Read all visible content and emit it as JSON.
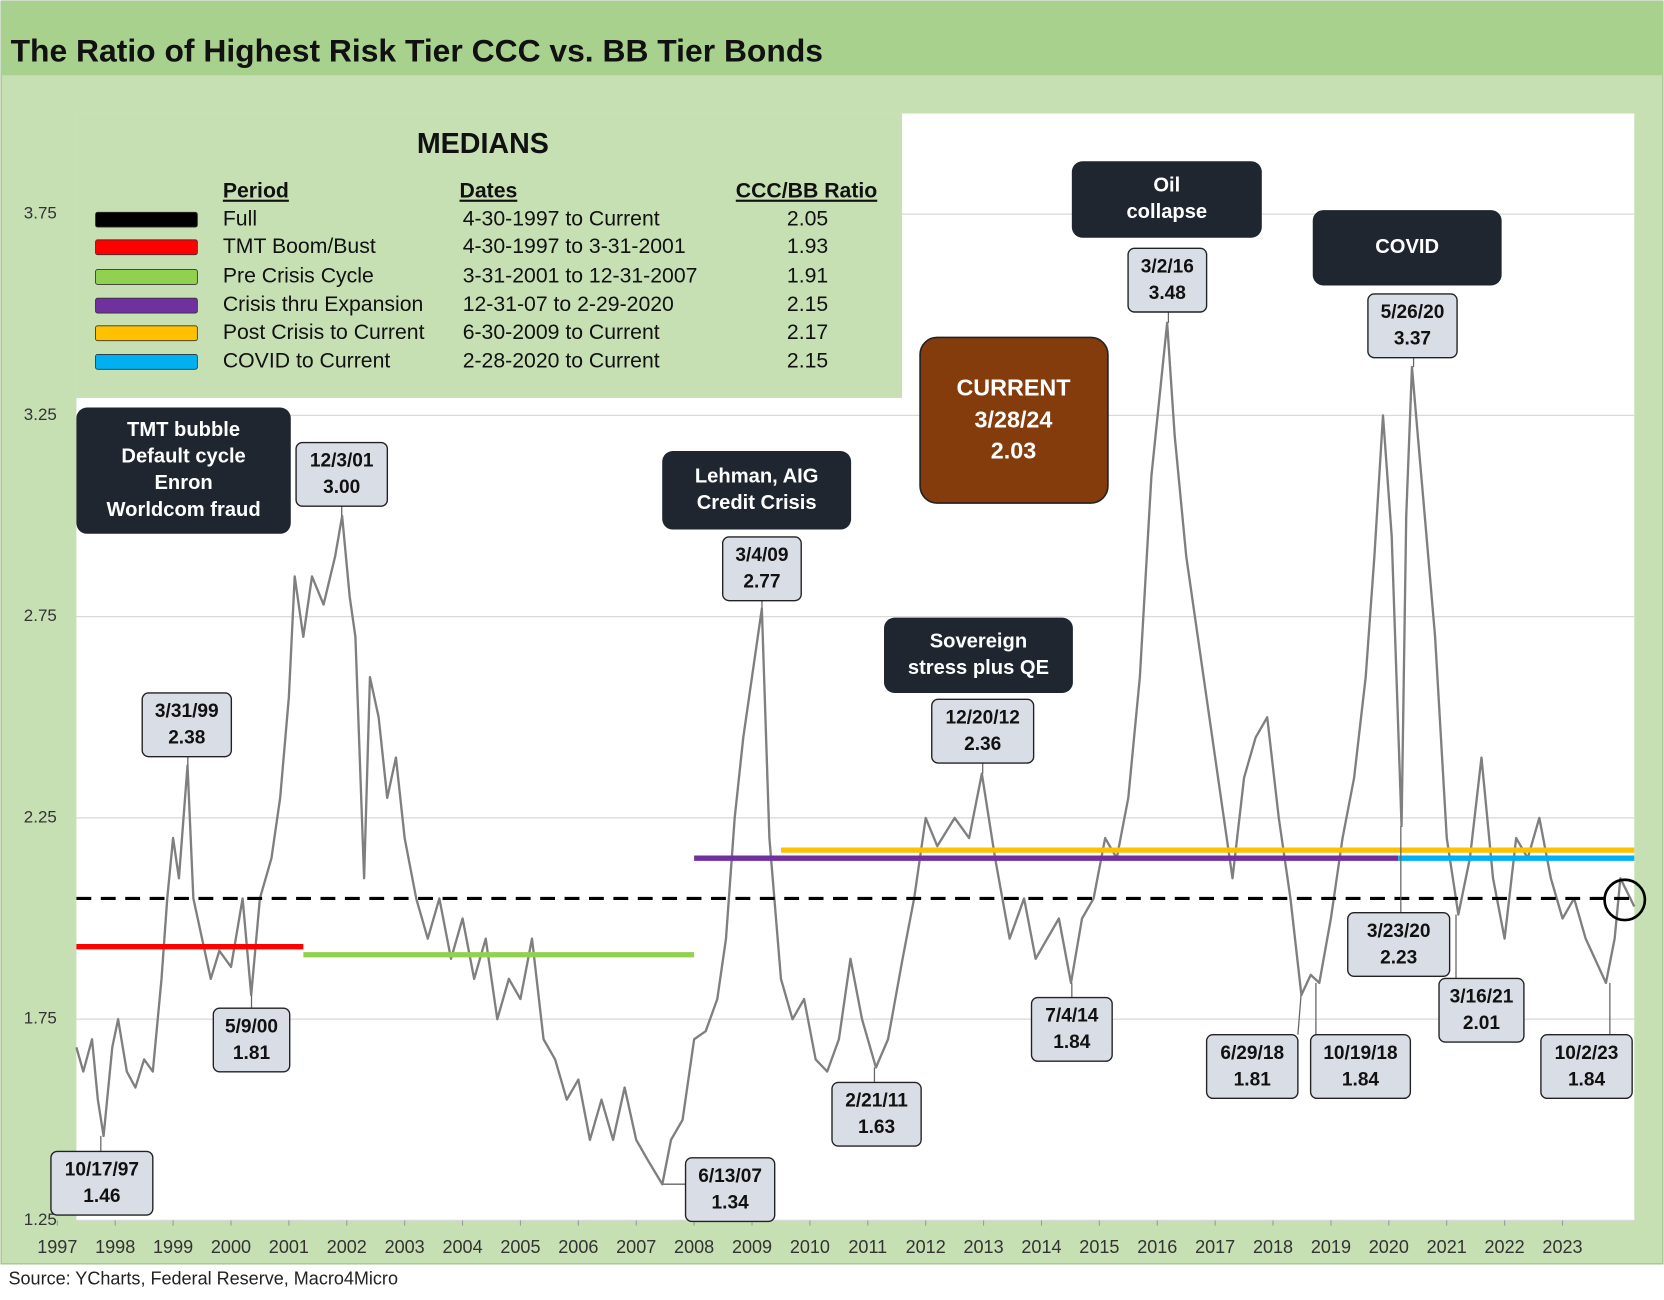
{
  "chart_data": {
    "type": "line",
    "title": "The Ratio of Highest Risk Tier CCC vs. BB Tier Bonds",
    "source": "Source: YCharts, Federal Reserve, Macro4Micro",
    "xlim": [
      1997.33,
      2024.24
    ],
    "xticks": [
      1997,
      1998,
      1999,
      2000,
      2001,
      2002,
      2003,
      2004,
      2005,
      2006,
      2007,
      2008,
      2009,
      2010,
      2011,
      2012,
      2013,
      2014,
      2015,
      2016,
      2017,
      2018,
      2019,
      2020,
      2021,
      2022,
      2023
    ],
    "ylim": [
      1.25,
      4.0
    ],
    "yticks": [
      1.25,
      1.75,
      2.25,
      2.75,
      3.25,
      3.75
    ],
    "grid": true,
    "series": [
      {
        "color": "#7f7f7f",
        "x": [
          1997.33,
          1997.45,
          1997.6,
          1997.7,
          1997.8,
          1997.95,
          1998.05,
          1998.2,
          1998.35,
          1998.5,
          1998.65,
          1998.8,
          1998.9,
          1999.0,
          1999.1,
          1999.25,
          1999.35,
          1999.5,
          1999.65,
          1999.8,
          2000.0,
          2000.2,
          2000.35,
          2000.5,
          2000.7,
          2000.85,
          2001.0,
          2001.1,
          2001.25,
          2001.4,
          2001.6,
          2001.8,
          2001.92,
          2002.05,
          2002.15,
          2002.3,
          2002.4,
          2002.55,
          2002.7,
          2002.85,
          2003.0,
          2003.2,
          2003.4,
          2003.6,
          2003.8,
          2004.0,
          2004.2,
          2004.4,
          2004.6,
          2004.8,
          2005.0,
          2005.2,
          2005.4,
          2005.6,
          2005.8,
          2006.0,
          2006.2,
          2006.4,
          2006.6,
          2006.8,
          2007.0,
          2007.2,
          2007.45,
          2007.6,
          2007.8,
          2008.0,
          2008.2,
          2008.4,
          2008.55,
          2008.7,
          2008.85,
          2009.0,
          2009.17,
          2009.3,
          2009.5,
          2009.7,
          2009.9,
          2010.1,
          2010.3,
          2010.5,
          2010.7,
          2010.9,
          2011.14,
          2011.35,
          2011.6,
          2011.8,
          2012.0,
          2012.2,
          2012.5,
          2012.75,
          2012.97,
          2013.2,
          2013.45,
          2013.7,
          2013.9,
          2014.1,
          2014.3,
          2014.51,
          2014.7,
          2014.9,
          2015.1,
          2015.3,
          2015.5,
          2015.7,
          2015.9,
          2016.17,
          2016.3,
          2016.5,
          2016.7,
          2016.9,
          2017.1,
          2017.3,
          2017.5,
          2017.7,
          2017.9,
          2018.1,
          2018.3,
          2018.49,
          2018.65,
          2018.8,
          2019.0,
          2019.2,
          2019.4,
          2019.6,
          2019.75,
          2019.9,
          2020.05,
          2020.22,
          2020.3,
          2020.4,
          2020.5,
          2020.65,
          2020.8,
          2021.0,
          2021.2,
          2021.4,
          2021.6,
          2021.8,
          2022.0,
          2022.2,
          2022.4,
          2022.6,
          2022.8,
          2023.0,
          2023.2,
          2023.4,
          2023.75,
          2023.9,
          2024.0,
          2024.24
        ],
        "values": [
          1.68,
          1.62,
          1.7,
          1.55,
          1.46,
          1.68,
          1.75,
          1.62,
          1.58,
          1.65,
          1.62,
          1.85,
          2.05,
          2.2,
          2.1,
          2.38,
          2.05,
          1.95,
          1.85,
          1.92,
          1.88,
          2.05,
          1.81,
          2.05,
          2.15,
          2.3,
          2.55,
          2.85,
          2.7,
          2.85,
          2.78,
          2.9,
          3.0,
          2.8,
          2.7,
          2.1,
          2.6,
          2.5,
          2.3,
          2.4,
          2.2,
          2.05,
          1.95,
          2.05,
          1.9,
          2.0,
          1.85,
          1.95,
          1.75,
          1.85,
          1.8,
          1.95,
          1.7,
          1.65,
          1.55,
          1.6,
          1.45,
          1.55,
          1.45,
          1.58,
          1.45,
          1.4,
          1.34,
          1.45,
          1.5,
          1.7,
          1.72,
          1.8,
          1.95,
          2.25,
          2.45,
          2.6,
          2.77,
          2.2,
          1.85,
          1.75,
          1.8,
          1.65,
          1.62,
          1.7,
          1.9,
          1.75,
          1.63,
          1.7,
          1.9,
          2.05,
          2.25,
          2.18,
          2.25,
          2.2,
          2.36,
          2.15,
          1.95,
          2.05,
          1.9,
          1.95,
          2.0,
          1.84,
          2.0,
          2.05,
          2.2,
          2.15,
          2.3,
          2.6,
          3.1,
          3.48,
          3.2,
          2.9,
          2.7,
          2.5,
          2.3,
          2.1,
          2.35,
          2.45,
          2.5,
          2.25,
          2.05,
          1.81,
          1.86,
          1.84,
          2.0,
          2.2,
          2.35,
          2.6,
          2.9,
          3.25,
          2.95,
          2.23,
          3.0,
          3.37,
          3.2,
          2.95,
          2.7,
          2.2,
          2.01,
          2.15,
          2.4,
          2.1,
          1.95,
          2.2,
          2.15,
          2.25,
          2.1,
          2.0,
          2.05,
          1.95,
          1.84,
          1.95,
          2.1,
          2.03
        ]
      }
    ],
    "medians": {
      "title": "MEDIANS",
      "columns": [
        "Period",
        "Dates",
        "CCC/BB Ratio"
      ],
      "rows": [
        {
          "period": "Full",
          "dates": "4-30-1997 to Current",
          "value": 2.05,
          "color": "#000000",
          "dashed": true,
          "x": [
            1997.33,
            2024.24
          ]
        },
        {
          "period": "TMT Boom/Bust",
          "dates": "4-30-1997 to 3-31-2001",
          "value": 1.93,
          "color": "#ff0000",
          "dashed": false,
          "x": [
            1997.33,
            2001.25
          ]
        },
        {
          "period": "Pre Crisis Cycle",
          "dates": "3-31-2001 to 12-31-2007",
          "value": 1.91,
          "color": "#92d050",
          "dashed": false,
          "x": [
            2001.25,
            2008.0
          ]
        },
        {
          "period": "Crisis thru Expansion",
          "dates": "12-31-07 to 2-29-2020",
          "value": 2.15,
          "color": "#7030a0",
          "dashed": false,
          "x": [
            2008.0,
            2020.16
          ]
        },
        {
          "period": "Post Crisis to Current",
          "dates": "6-30-2009 to Current",
          "value": 2.17,
          "color": "#ffc000",
          "dashed": false,
          "x": [
            2009.5,
            2024.24
          ]
        },
        {
          "period": "COVID to Current",
          "dates": "2-28-2020 to Current",
          "value": 2.15,
          "color": "#00b0f0",
          "dashed": false,
          "x": [
            2020.16,
            2024.24
          ]
        }
      ]
    },
    "annotations": [
      {
        "date": "10/17/97",
        "value": 1.46,
        "label": "1.46"
      },
      {
        "date": "3/31/99",
        "value": 2.38,
        "label": "2.38"
      },
      {
        "date": "5/9/00",
        "value": 1.81,
        "label": "1.81"
      },
      {
        "date": "12/3/01",
        "value": 3.0,
        "label": "3.00"
      },
      {
        "date": "6/13/07",
        "value": 1.34,
        "label": "1.34"
      },
      {
        "date": "3/4/09",
        "value": 2.77,
        "label": "2.77"
      },
      {
        "date": "2/21/11",
        "value": 1.63,
        "label": "1.63"
      },
      {
        "date": "12/20/12",
        "value": 2.36,
        "label": "2.36"
      },
      {
        "date": "7/4/14",
        "value": 1.84,
        "label": "1.84"
      },
      {
        "date": "3/2/16",
        "value": 3.48,
        "label": "3.48"
      },
      {
        "date": "6/29/18",
        "value": 1.81,
        "label": "1.81"
      },
      {
        "date": "10/19/18",
        "value": 1.84,
        "label": "1.84"
      },
      {
        "date": "3/23/20",
        "value": 2.23,
        "label": "2.23"
      },
      {
        "date": "5/26/20",
        "value": 3.37,
        "label": "3.37"
      },
      {
        "date": "3/16/21",
        "value": 2.01,
        "label": "2.01"
      },
      {
        "date": "10/2/23",
        "value": 1.84,
        "label": "1.84"
      }
    ],
    "events": [
      {
        "lines": [
          "TMT bubble",
          "Default cycle",
          "Enron",
          "Worldcom fraud"
        ]
      },
      {
        "lines": [
          "Lehman, AIG",
          "Credit Crisis"
        ]
      },
      {
        "lines": [
          "Sovereign",
          "stress plus QE"
        ]
      },
      {
        "lines": [
          "Oil",
          "collapse"
        ]
      },
      {
        "lines": [
          "COVID"
        ]
      }
    ],
    "current": {
      "lines": [
        "CURRENT",
        "3/28/24"
      ],
      "value": 2.03
    }
  }
}
